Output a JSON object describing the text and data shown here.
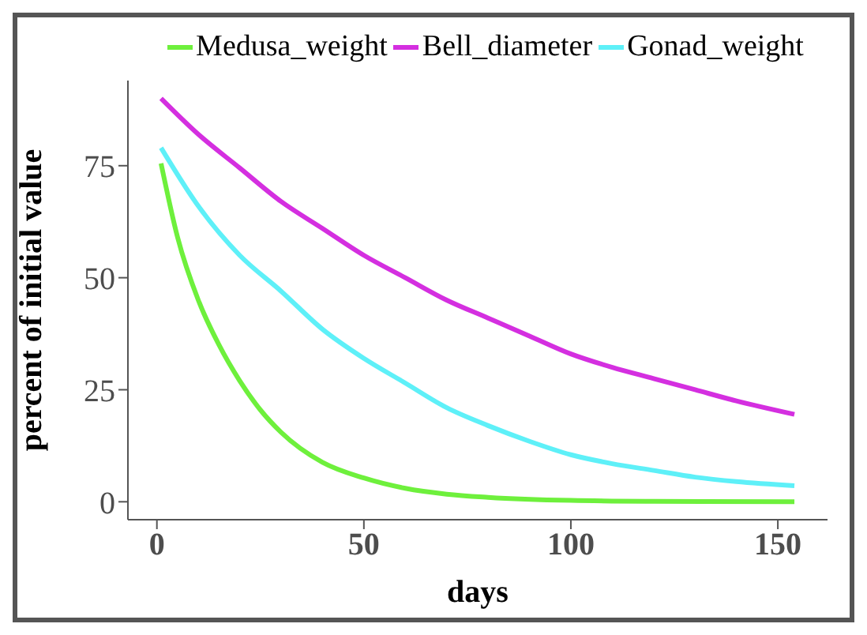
{
  "chart_data": {
    "type": "line",
    "xlabel": "days",
    "ylabel": "percent of initial value",
    "xlim": [
      -7,
      162
    ],
    "xticks": [
      0,
      50,
      100,
      150
    ],
    "ylim": [
      -4,
      94
    ],
    "yticks": [
      0,
      25,
      50,
      75
    ],
    "grid": false,
    "legend": "top",
    "marker": "none",
    "line_style": "solid",
    "series": [
      {
        "name": "Medusa_weight",
        "color": "#6ef03c",
        "x": [
          1,
          5,
          10,
          15,
          20,
          25,
          30,
          40,
          50,
          60,
          70,
          80,
          100,
          120,
          154
        ],
        "values": [
          75.5,
          59,
          45,
          35,
          27,
          20.5,
          15.5,
          8.8,
          5.3,
          3,
          1.7,
          1,
          0.3,
          0.1,
          0
        ]
      },
      {
        "name": "Bell_diameter",
        "color": "#d42fe0",
        "x": [
          1,
          10,
          20,
          30,
          40,
          50,
          60,
          70,
          80,
          90,
          100,
          110,
          120,
          130,
          140,
          154
        ],
        "values": [
          90,
          82,
          74.5,
          67,
          61,
          55,
          50,
          45,
          41,
          37,
          33,
          30,
          27.5,
          25,
          22.5,
          19.5
        ]
      },
      {
        "name": "Gonad_weight",
        "color": "#5ef0f8",
        "x": [
          1,
          10,
          20,
          30,
          40,
          50,
          60,
          70,
          80,
          90,
          100,
          110,
          120,
          130,
          140,
          154
        ],
        "values": [
          79,
          66,
          55,
          47,
          38.5,
          32,
          26.5,
          21,
          17,
          13.5,
          10.5,
          8.5,
          7,
          5.5,
          4.5,
          3.6
        ]
      }
    ]
  }
}
